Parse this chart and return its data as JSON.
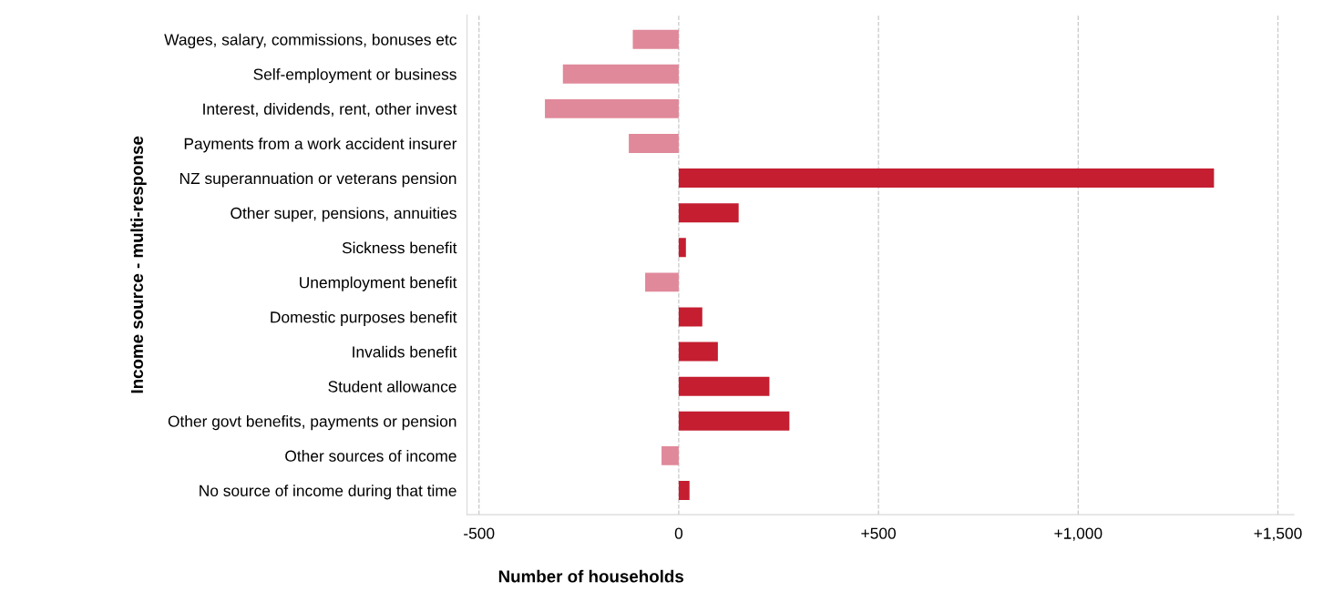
{
  "chart_data": {
    "type": "bar",
    "orientation": "horizontal",
    "xlabel": "Number of households",
    "ylabel": "Income source - multi-response",
    "categories": [
      "Wages, salary, commissions, bonuses etc",
      "Self-employment or business",
      "Interest, dividends, rent, other invest",
      "Payments from a work accident insurer",
      "NZ superannuation or veterans pension",
      "Other super, pensions, annuities",
      "Sickness benefit",
      "Unemployment benefit",
      "Domestic purposes benefit",
      "Invalids benefit",
      "Student allowance",
      "Other govt benefits, payments or pension",
      "Other sources of income",
      "No source of income during that time"
    ],
    "values": [
      -115,
      -290,
      -335,
      -125,
      1340,
      150,
      18,
      -84,
      59,
      98,
      227,
      277,
      -43,
      27
    ],
    "colors": [
      "#e0899a",
      "#e0899a",
      "#e0899a",
      "#e0899a",
      "#c41e30",
      "#c41e30",
      "#c41e30",
      "#e0899a",
      "#c41e30",
      "#c41e30",
      "#c41e30",
      "#c41e30",
      "#e0899a",
      "#c41e30"
    ],
    "xlim": [
      -530,
      1540
    ],
    "xticks": [
      {
        "value": -500,
        "label": "-500"
      },
      0,
      {
        "value": 500,
        "label": "+500"
      },
      {
        "value": 1000,
        "label": "+1,000"
      },
      {
        "value": 1500,
        "label": "+1,500"
      }
    ],
    "grid": "x",
    "legend": false
  }
}
